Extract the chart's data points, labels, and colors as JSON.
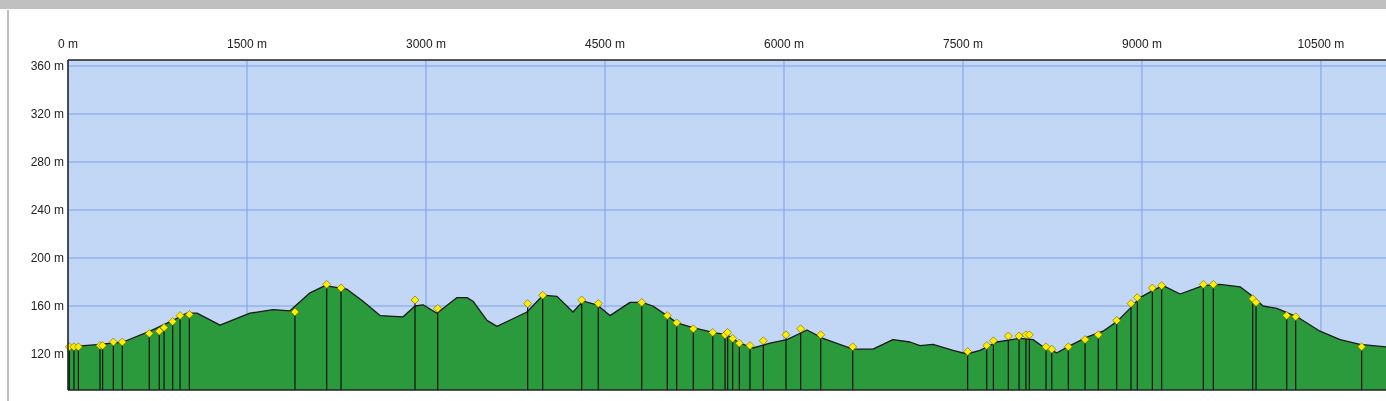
{
  "chart_data": {
    "type": "area",
    "xlim": [
      0,
      11045
    ],
    "ylim": [
      90,
      365
    ],
    "xticks": [
      {
        "value": 0,
        "label": "0 m"
      },
      {
        "value": 1500,
        "label": "1500 m"
      },
      {
        "value": 3000,
        "label": "3000 m"
      },
      {
        "value": 4500,
        "label": "4500 m"
      },
      {
        "value": 6000,
        "label": "6000 m"
      },
      {
        "value": 7500,
        "label": "7500 m"
      },
      {
        "value": 9000,
        "label": "9000 m"
      },
      {
        "value": 10500,
        "label": "10500 m"
      }
    ],
    "yticks": [
      {
        "value": 120,
        "label": "120 m"
      },
      {
        "value": 160,
        "label": "160 m"
      },
      {
        "value": 200,
        "label": "200 m"
      },
      {
        "value": 240,
        "label": "240 m"
      },
      {
        "value": 280,
        "label": "280 m"
      },
      {
        "value": 320,
        "label": "320 m"
      },
      {
        "value": 360,
        "label": "360 m"
      }
    ],
    "grid": true,
    "series": [
      {
        "color": "#2a9a3c",
        "x": [
          0,
          268,
          461,
          687,
          880,
          997,
          1081,
          1274,
          1525,
          1718,
          1860,
          2028,
          2154,
          2338,
          2472,
          2615,
          2808,
          2908,
          2975,
          3092,
          3260,
          3344,
          3394,
          3511,
          3595,
          3846,
          3981,
          4098,
          4232,
          4316,
          4433,
          4542,
          4710,
          4810,
          4902,
          5019,
          5103,
          5237,
          5405,
          5522,
          5631,
          5740,
          5883,
          6025,
          6193,
          6327,
          6578,
          6746,
          6913,
          7056,
          7140,
          7249,
          7417,
          7534,
          7643,
          7785,
          7978,
          8087,
          8171,
          8288,
          8397,
          8539,
          8673,
          8790,
          8900,
          8983,
          9093,
          9177,
          9319,
          9512,
          9654,
          9822,
          9930,
          10014,
          10131,
          10299,
          10492,
          10660,
          10827,
          11045
        ],
        "values": [
          126,
          128,
          130,
          139,
          148,
          154,
          154,
          144,
          154,
          157,
          156,
          171,
          177,
          174,
          164,
          152,
          151,
          160,
          161,
          154,
          167,
          167,
          164,
          148,
          143,
          155,
          169,
          168,
          155,
          164,
          161,
          152,
          163,
          163,
          160,
          152,
          146,
          142,
          138,
          136,
          129,
          125,
          129,
          132,
          140,
          133,
          124,
          124,
          132,
          130,
          127,
          128,
          123,
          120,
          123,
          130,
          133,
          132,
          126,
          121,
          127,
          134,
          139,
          147,
          158,
          167,
          173,
          177,
          170,
          177,
          178,
          176,
          168,
          160,
          158,
          151,
          139,
          132,
          128,
          126
        ]
      },
      {
        "type": "lollipop",
        "color": "#ffee00",
        "marker": "diamond",
        "x": [
          11,
          50,
          87,
          268,
          290,
          380,
          455,
          681,
          765,
          805,
          877,
          939,
          1017,
          1902,
          2168,
          2288,
          2908,
          3098,
          3852,
          3978,
          4305,
          4444,
          4808,
          5022,
          5101,
          5240,
          5403,
          5506,
          5528,
          5570,
          5626,
          5715,
          5827,
          6017,
          6140,
          6308,
          6576,
          7539,
          7699,
          7755,
          7880,
          7970,
          8028,
          8056,
          8196,
          8244,
          8383,
          8523,
          8634,
          8788,
          8908,
          8961,
          9087,
          9165,
          9514,
          9598,
          9928,
          9956,
          10213,
          10288,
          10841
        ],
        "values": [
          126,
          126,
          126,
          127,
          127,
          130,
          130,
          137,
          139,
          142,
          147,
          152,
          153,
          155,
          178,
          175,
          165,
          158,
          162,
          169,
          165,
          162,
          163,
          152,
          146,
          141,
          138,
          136,
          138,
          133,
          129,
          127,
          131,
          136,
          141,
          136,
          126,
          122,
          127,
          131,
          135,
          135,
          136,
          136,
          126,
          124,
          126,
          132,
          136,
          148,
          162,
          167,
          175,
          177,
          178,
          178,
          166,
          163,
          152,
          151,
          126
        ]
      }
    ]
  }
}
